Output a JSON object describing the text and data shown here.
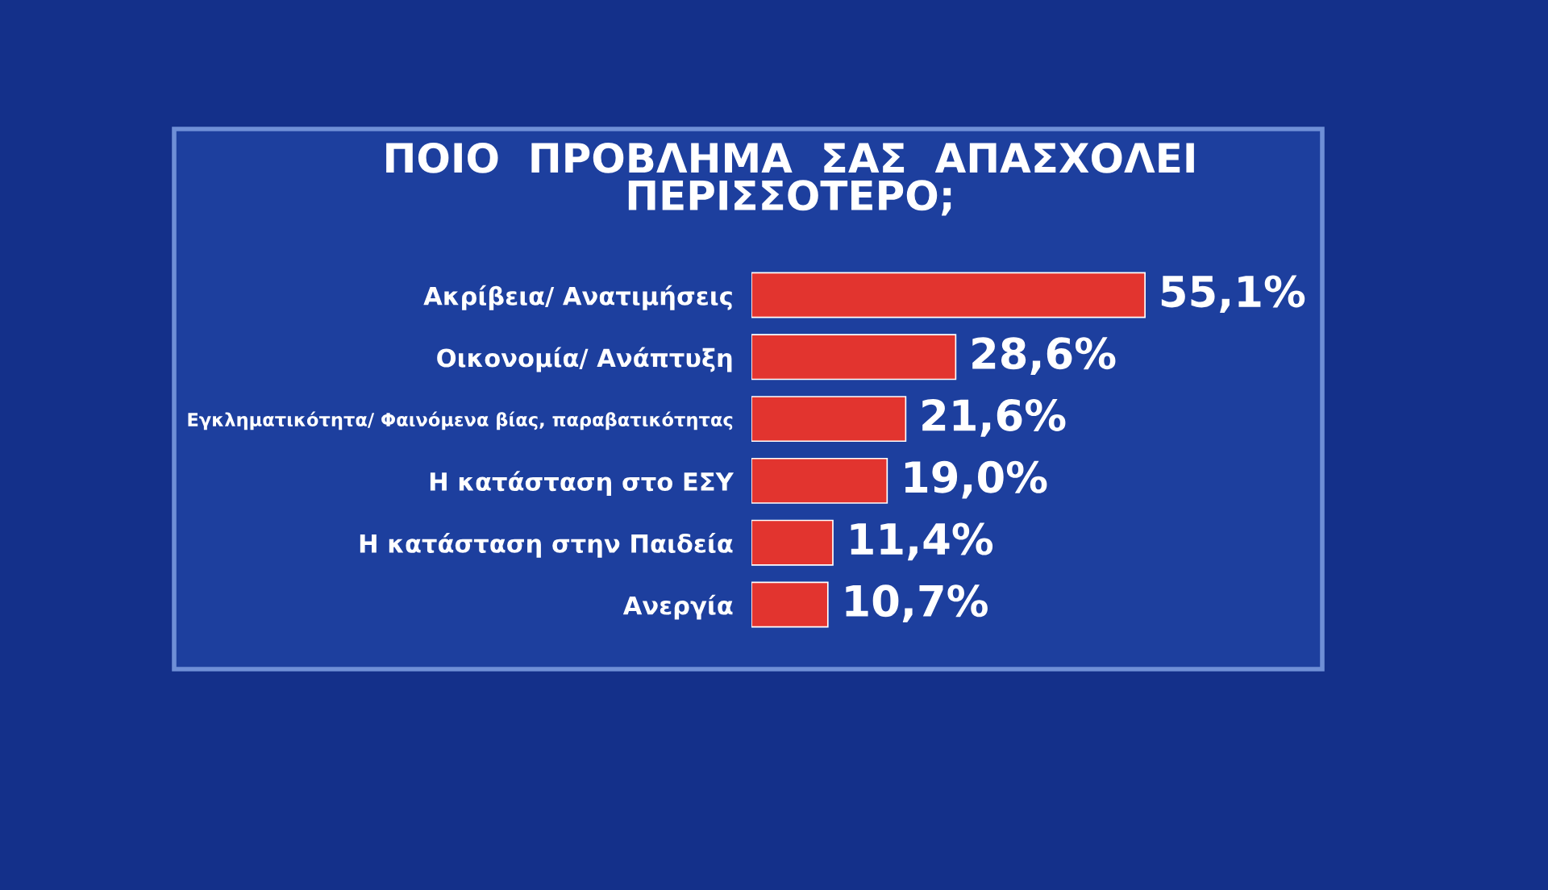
{
  "chart_data": {
    "type": "bar",
    "orientation": "horizontal",
    "title": "ΠΟΙΟ  ΠΡΟΒΛΗΜΑ  ΣΑΣ  ΑΠΑΣΧΟΛΕΙ\nΠΕΡΙΣΣΟΤΕΡΟ;",
    "categories": [
      "Ακρίβεια/ Ανατιμήσεις",
      "Οικονομία/ Ανάπτυξη",
      "Εγκληματικότητα/ Φαινόμενα βίας, παραβατικότητας",
      "Η κατάσταση στο ΕΣΥ",
      "Η κατάσταση στην Παιδεία",
      "Ανεργία"
    ],
    "values": [
      55.1,
      28.6,
      21.6,
      19.0,
      11.4,
      10.7
    ],
    "value_labels": [
      "55,1%",
      "28,6%",
      "21,6%",
      "19,0%",
      "11,4%",
      "10,7%"
    ],
    "color": "#e2342f",
    "grid": false,
    "legend": false
  }
}
